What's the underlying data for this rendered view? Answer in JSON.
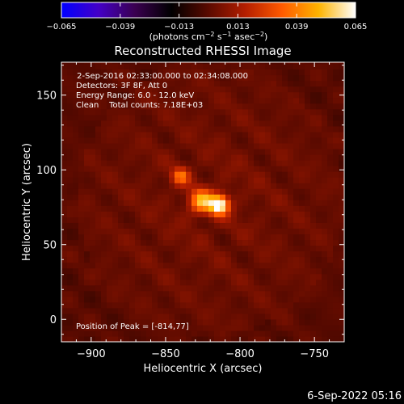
{
  "chart_data": {
    "type": "heatmap",
    "title": "Reconstructed RHESSI Image",
    "xlabel": "Heliocentric X (arcsec)",
    "ylabel": "Heliocentric Y (arcsec)",
    "xlim": [
      -920,
      -730
    ],
    "ylim": [
      -15,
      172
    ],
    "x_ticks": [
      {
        "value": -900,
        "label": "−900"
      },
      {
        "value": -850,
        "label": "−850"
      },
      {
        "value": -800,
        "label": "−800"
      },
      {
        "value": -750,
        "label": "−750"
      }
    ],
    "y_ticks": [
      {
        "value": 0,
        "label": "0"
      },
      {
        "value": 50,
        "label": "50"
      },
      {
        "value": 100,
        "label": "100"
      },
      {
        "value": 150,
        "label": "150"
      }
    ],
    "colorbar": {
      "range": [
        -0.065,
        0.065
      ],
      "ticks": [
        {
          "value": -0.065,
          "label": "−0.065"
        },
        {
          "value": -0.039,
          "label": "−0.039"
        },
        {
          "value": -0.013,
          "label": "−0.013"
        },
        {
          "value": 0.013,
          "label": "0.013"
        },
        {
          "value": 0.039,
          "label": "0.039"
        },
        {
          "value": 0.065,
          "label": "0.065"
        }
      ],
      "unit_parts": [
        {
          "t": "(photons cm",
          "sup": false
        },
        {
          "t": "−2",
          "sup": true
        },
        {
          "t": " s",
          "sup": false
        },
        {
          "t": "−1",
          "sup": true
        },
        {
          "t": " asec",
          "sup": false
        },
        {
          "t": "−2",
          "sup": true
        },
        {
          "t": ")",
          "sup": false
        }
      ],
      "colors": [
        "#0000ff",
        "#4400c8",
        "#3a0050",
        "#000000",
        "#5a0a00",
        "#b41e00",
        "#ff5a00",
        "#ffb400",
        "#ffffff"
      ]
    },
    "annotations": [
      " 2-Sep-2016 02:33:00.000 to 02:34:08.000",
      "Detectors: 3F 8F, Att 0",
      "Energy Range: 6.0 - 12.0 keV",
      "Clean    Total counts: 7.18E+03"
    ],
    "peak_label": "Position of Peak = [-814,77]",
    "sources": [
      {
        "x": -814,
        "y": 77,
        "peak": 0.065,
        "sigma": 4.5
      },
      {
        "x": -826,
        "y": 79,
        "peak": 0.042,
        "sigma": 5.5
      },
      {
        "x": -840,
        "y": 96,
        "peak": 0.03,
        "sigma": 4.0
      }
    ]
  },
  "footer": {
    "timestamp": "6-Sep-2022 05:16"
  }
}
